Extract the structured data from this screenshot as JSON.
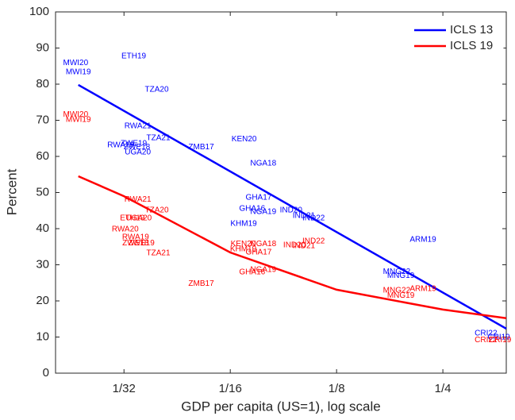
{
  "chart_data": {
    "type": "scatter",
    "xlabel": "GDP per capita (US=1), log scale",
    "ylabel": "Percent",
    "xlog": true,
    "xlim": [
      0.02,
      0.378
    ],
    "ylim": [
      0,
      100
    ],
    "xticks": [
      {
        "value": 0.03125,
        "label": "1/32"
      },
      {
        "value": 0.0625,
        "label": "1/16"
      },
      {
        "value": 0.125,
        "label": "1/8"
      },
      {
        "value": 0.25,
        "label": "1/4"
      }
    ],
    "yticks": [
      0,
      10,
      20,
      30,
      40,
      50,
      60,
      70,
      80,
      90,
      100
    ],
    "legend": "upper right",
    "series": [
      {
        "name": "ICLS 13",
        "color": "#0000ff",
        "labels": [
          "MWI20",
          "MWI19",
          "ETH19",
          "TZA20",
          "RWA21",
          "TZA21",
          "RWA19",
          "ZWE19",
          "ZWE18",
          "UGA20",
          "ZMB17",
          "KEN20",
          "NGA18",
          "GHA17",
          "GHA16",
          "NGA19",
          "KHM19",
          "IND20",
          "IND21",
          "IND22",
          "ARM19",
          "MNG22",
          "MNG19",
          "CRI22",
          "CRI19"
        ],
        "x": [
          0.0228,
          0.0232,
          0.0333,
          0.0387,
          0.0342,
          0.0391,
          0.0306,
          0.0333,
          0.034,
          0.0342,
          0.0517,
          0.0684,
          0.0775,
          0.0752,
          0.0721,
          0.0775,
          0.0682,
          0.0929,
          0.101,
          0.1076,
          0.2196,
          0.185,
          0.19,
          0.331,
          0.36
        ],
        "values": [
          85.9,
          83.3,
          87.7,
          78.5,
          68.4,
          65.1,
          63.1,
          63.5,
          62.6,
          61.1,
          62.6,
          64.8,
          58.0,
          48.6,
          45.5,
          44.6,
          41.3,
          45.1,
          43.5,
          42.9,
          36.9,
          28.1,
          27.0,
          11.0,
          9.9
        ],
        "fit_x": [
          0.0232,
          0.378
        ],
        "fit_values": [
          79.8,
          12.3
        ]
      },
      {
        "name": "ICLS 19",
        "color": "#ff0000",
        "labels": [
          "MWI20",
          "MWI19",
          "RWA21",
          "TZA20",
          "ETH19",
          "UGA20",
          "RWA20",
          "RWA19",
          "ZWE18",
          "ZWE19",
          "TZA21",
          "ZMB17",
          "KEN20",
          "NGA18",
          "KHM19",
          "GHA17",
          "GHA16",
          "NGA19",
          "IND20",
          "IND21",
          "IND22",
          "MNG22",
          "MNG19",
          "ARM19",
          "CRI22",
          "CRI19"
        ],
        "x": [
          0.0228,
          0.0232,
          0.0342,
          0.0387,
          0.033,
          0.0344,
          0.0315,
          0.0337,
          0.0337,
          0.035,
          0.0391,
          0.0517,
          0.068,
          0.0775,
          0.068,
          0.0752,
          0.0721,
          0.0775,
          0.095,
          0.101,
          0.1076,
          0.185,
          0.19,
          0.2196,
          0.331,
          0.363
        ],
        "values": [
          71.6,
          70.1,
          48.1,
          45.1,
          42.9,
          42.9,
          39.8,
          37.6,
          36.0,
          36.0,
          33.2,
          24.8,
          35.8,
          35.8,
          34.3,
          33.4,
          27.9,
          28.6,
          35.4,
          35.2,
          36.5,
          22.9,
          21.5,
          23.3,
          9.2,
          9.2
        ],
        "fit_x": [
          0.0232,
          0.03125,
          0.0625,
          0.125,
          0.25,
          0.378
        ],
        "fit_values": [
          54.5,
          49.0,
          33.4,
          23.1,
          17.6,
          15.2
        ]
      }
    ]
  }
}
